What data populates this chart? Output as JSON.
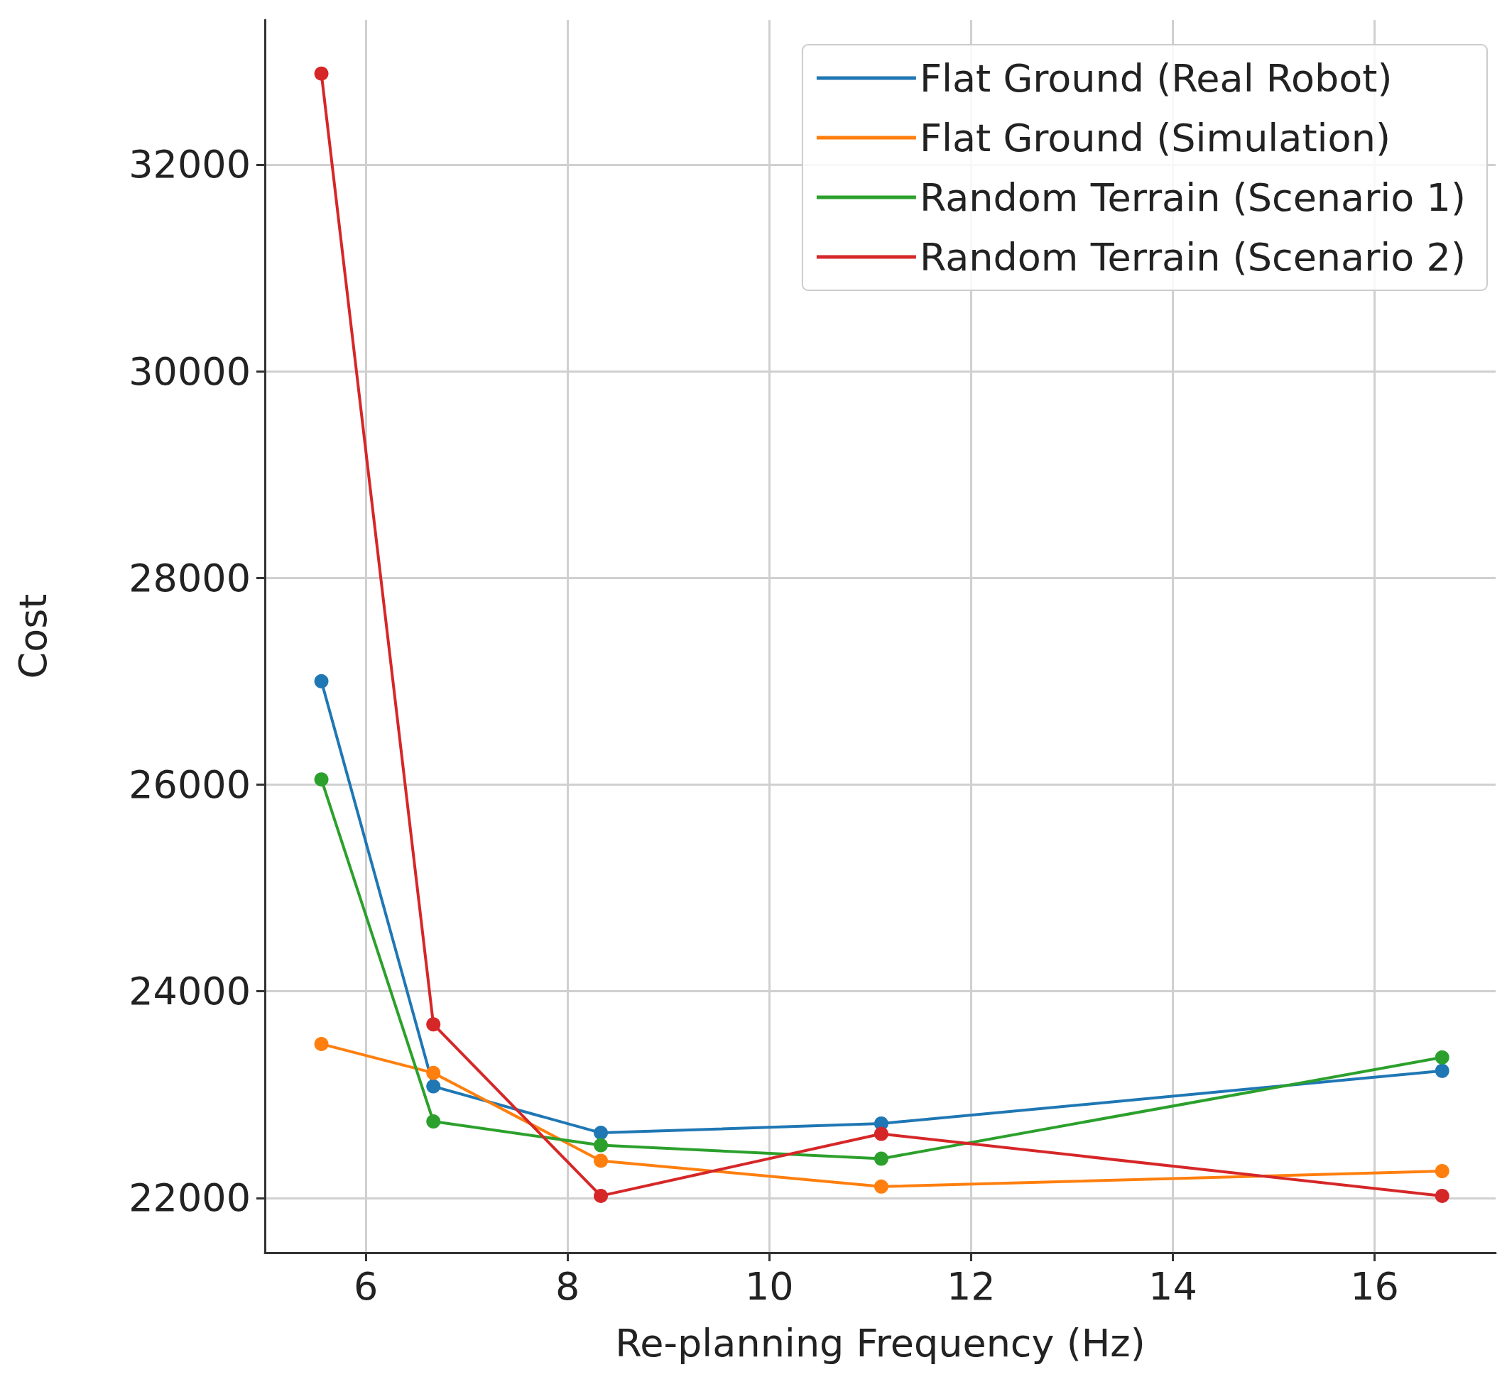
{
  "chart_data": {
    "type": "line",
    "xlabel": "Re-planning Frequency (Hz)",
    "ylabel": "Cost",
    "xlim": [
      5,
      17.2
    ],
    "xticks": [
      6,
      8,
      10,
      12,
      14,
      16
    ],
    "ylim": [
      21470,
      33400
    ],
    "yticks": [
      22000,
      24000,
      26000,
      28000,
      30000,
      32000
    ],
    "grid": true,
    "legend": "top right",
    "marker": "circle",
    "line_style": "solid",
    "series": [
      {
        "name": "Flat Ground (Real Robot)",
        "color": "#1f77b4",
        "x": [
          5.56,
          6.67,
          8.33,
          11.11,
          16.67
        ],
        "values": [
          27000,
          23080,
          22630,
          22720,
          23230
        ]
      },
      {
        "name": "Flat Ground (Simulation)",
        "color": "#ff7f0e",
        "x": [
          5.56,
          6.67,
          8.33,
          11.11,
          16.67
        ],
        "values": [
          23490,
          23210,
          22360,
          22110,
          22260
        ]
      },
      {
        "name": "Random Terrain (Scenario 1)",
        "color": "#2ca02c",
        "x": [
          5.56,
          6.67,
          8.33,
          11.11,
          16.67
        ],
        "values": [
          26050,
          22740,
          22510,
          22380,
          23360
        ]
      },
      {
        "name": "Random Terrain (Scenario 2)",
        "color": "#d62728",
        "x": [
          5.56,
          6.67,
          8.33,
          11.11,
          16.67
        ],
        "values": [
          32880,
          23680,
          22020,
          22620,
          22020
        ]
      }
    ]
  }
}
